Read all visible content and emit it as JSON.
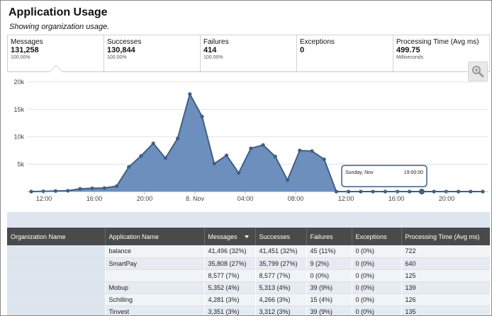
{
  "header": {
    "title": "Application Usage",
    "subtitle": "Showing organization usage."
  },
  "stats": [
    {
      "label": "Messages",
      "value": "131,258",
      "sub": "100.00%"
    },
    {
      "label": "Successes",
      "value": "130,844",
      "sub": "100.00%"
    },
    {
      "label": "Failures",
      "value": "414",
      "sub": "100.00%"
    },
    {
      "label": "Exceptions",
      "value": "0",
      "sub": ""
    },
    {
      "label": "Processing Time (Avg ms)",
      "value": "499.75",
      "sub": "Milliseconds"
    }
  ],
  "colors": {
    "area_fill": "#6d8fbd",
    "area_line": "#3c5f8c",
    "table_header": "#4a4a4a"
  },
  "chart_data": {
    "type": "area",
    "y_ticks": [
      "20k",
      "15k",
      "10k",
      "5k"
    ],
    "x_ticks": [
      "12:00",
      "16:00",
      "20:00",
      "8. Nov",
      "04:00",
      "08:00",
      "12:00",
      "16:00",
      "20:00"
    ],
    "ylim": [
      0,
      20000
    ],
    "values": [
      0,
      50,
      100,
      150,
      500,
      600,
      650,
      1000,
      4500,
      6500,
      8800,
      6100,
      9700,
      17800,
      13700,
      5100,
      6600,
      3400,
      7900,
      8500,
      6400,
      2100,
      7500,
      7400,
      5900,
      0,
      0,
      0,
      0,
      0,
      0,
      0,
      0,
      0,
      0,
      0,
      0,
      0
    ],
    "tooltip": {
      "label": "Sunday, Nov",
      "value": "19:00:00"
    }
  },
  "zoom_icon": "magnifier-plus-icon",
  "table": {
    "headers": [
      "Organization Name",
      "Application Name",
      "Messages",
      "Successes",
      "Failures",
      "Exceptions",
      "Processing Time (Avg ms)"
    ],
    "rows": [
      [
        "",
        "balance",
        "41,496 (32%)",
        "41,451 (32%)",
        "45 (11%)",
        "0 (0%)",
        "722"
      ],
      [
        "",
        "SmartPay",
        "35,808 (27%)",
        "35,799 (27%)",
        "9 (2%)",
        "0 (0%)",
        "640"
      ],
      [
        "",
        "",
        "8,577 (7%)",
        "8,577 (7%)",
        "0 (0%)",
        "0 (0%)",
        "125"
      ],
      [
        "",
        "Mobup",
        "5,352 (4%)",
        "5,313 (4%)",
        "39 (9%)",
        "0 (0%)",
        "139"
      ],
      [
        "",
        "Schilling",
        "4,281 (3%)",
        "4,266 (3%)",
        "15 (4%)",
        "0 (0%)",
        "126"
      ],
      [
        "",
        "Tinvest",
        "3,351 (3%)",
        "3,312 (3%)",
        "39 (9%)",
        "0 (0%)",
        "135"
      ]
    ]
  }
}
